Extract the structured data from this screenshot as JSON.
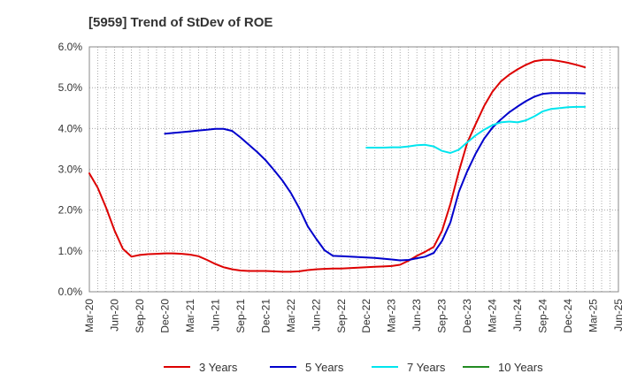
{
  "chart_data": {
    "type": "line",
    "title": "[5959]  Trend of StDev of ROE",
    "xlabel": "",
    "ylabel": "",
    "x_ticks": [
      "Mar-20",
      "Jun-20",
      "Sep-20",
      "Dec-20",
      "Mar-21",
      "Jun-21",
      "Sep-21",
      "Dec-21",
      "Mar-22",
      "Jun-22",
      "Sep-22",
      "Dec-22",
      "Mar-23",
      "Jun-23",
      "Sep-23",
      "Dec-23",
      "Mar-24",
      "Jun-24",
      "Sep-24",
      "Dec-24",
      "Mar-25",
      "Jun-25"
    ],
    "y_ticks": [
      "0.0%",
      "1.0%",
      "2.0%",
      "3.0%",
      "4.0%",
      "5.0%",
      "6.0%"
    ],
    "ylim": [
      0,
      6
    ],
    "grid": true,
    "legend_position": "bottom",
    "series": [
      {
        "name": "3 Years",
        "color": "#dd0000",
        "points": [
          [
            0,
            2.9
          ],
          [
            0.33,
            2.55
          ],
          [
            0.67,
            2.05
          ],
          [
            1,
            1.5
          ],
          [
            1.33,
            1.05
          ],
          [
            1.67,
            0.86
          ],
          [
            2,
            0.9
          ],
          [
            2.33,
            0.92
          ],
          [
            2.67,
            0.93
          ],
          [
            3,
            0.94
          ],
          [
            3.33,
            0.94
          ],
          [
            3.67,
            0.93
          ],
          [
            4,
            0.91
          ],
          [
            4.33,
            0.87
          ],
          [
            4.67,
            0.78
          ],
          [
            5,
            0.68
          ],
          [
            5.33,
            0.6
          ],
          [
            5.67,
            0.55
          ],
          [
            6,
            0.52
          ],
          [
            6.33,
            0.51
          ],
          [
            6.67,
            0.51
          ],
          [
            7,
            0.51
          ],
          [
            7.33,
            0.5
          ],
          [
            7.67,
            0.49
          ],
          [
            8,
            0.49
          ],
          [
            8.33,
            0.5
          ],
          [
            8.67,
            0.53
          ],
          [
            9,
            0.55
          ],
          [
            9.33,
            0.56
          ],
          [
            9.67,
            0.57
          ],
          [
            10,
            0.57
          ],
          [
            10.33,
            0.58
          ],
          [
            10.67,
            0.59
          ],
          [
            11,
            0.6
          ],
          [
            11.33,
            0.61
          ],
          [
            11.67,
            0.62
          ],
          [
            12,
            0.63
          ],
          [
            12.33,
            0.66
          ],
          [
            12.67,
            0.76
          ],
          [
            13,
            0.88
          ],
          [
            13.33,
            0.98
          ],
          [
            13.67,
            1.1
          ],
          [
            14,
            1.5
          ],
          [
            14.33,
            2.15
          ],
          [
            14.67,
            2.95
          ],
          [
            15,
            3.65
          ],
          [
            15.33,
            4.1
          ],
          [
            15.67,
            4.55
          ],
          [
            16,
            4.9
          ],
          [
            16.33,
            5.15
          ],
          [
            16.67,
            5.32
          ],
          [
            17,
            5.45
          ],
          [
            17.33,
            5.56
          ],
          [
            17.67,
            5.65
          ],
          [
            18,
            5.68
          ],
          [
            18.33,
            5.68
          ],
          [
            18.67,
            5.65
          ],
          [
            19,
            5.61
          ],
          [
            19.33,
            5.56
          ],
          [
            19.67,
            5.5
          ]
        ]
      },
      {
        "name": "5 Years",
        "color": "#0000cc",
        "points": [
          [
            3,
            3.87
          ],
          [
            3.33,
            3.89
          ],
          [
            3.67,
            3.91
          ],
          [
            4,
            3.93
          ],
          [
            4.33,
            3.95
          ],
          [
            4.67,
            3.97
          ],
          [
            5,
            3.99
          ],
          [
            5.33,
            3.99
          ],
          [
            5.67,
            3.94
          ],
          [
            6,
            3.78
          ],
          [
            6.33,
            3.6
          ],
          [
            6.67,
            3.42
          ],
          [
            7,
            3.22
          ],
          [
            7.33,
            2.98
          ],
          [
            7.67,
            2.72
          ],
          [
            8,
            2.42
          ],
          [
            8.33,
            2.05
          ],
          [
            8.67,
            1.6
          ],
          [
            9,
            1.3
          ],
          [
            9.33,
            1.02
          ],
          [
            9.67,
            0.88
          ],
          [
            10,
            0.87
          ],
          [
            10.33,
            0.86
          ],
          [
            10.67,
            0.85
          ],
          [
            11,
            0.84
          ],
          [
            11.33,
            0.83
          ],
          [
            11.67,
            0.81
          ],
          [
            12,
            0.79
          ],
          [
            12.33,
            0.77
          ],
          [
            12.67,
            0.78
          ],
          [
            13,
            0.82
          ],
          [
            13.33,
            0.86
          ],
          [
            13.67,
            0.95
          ],
          [
            14,
            1.25
          ],
          [
            14.33,
            1.7
          ],
          [
            14.67,
            2.45
          ],
          [
            15,
            2.95
          ],
          [
            15.33,
            3.38
          ],
          [
            15.67,
            3.75
          ],
          [
            16,
            4.02
          ],
          [
            16.33,
            4.22
          ],
          [
            16.67,
            4.4
          ],
          [
            17,
            4.54
          ],
          [
            17.33,
            4.67
          ],
          [
            17.67,
            4.78
          ],
          [
            18,
            4.85
          ],
          [
            18.33,
            4.87
          ],
          [
            18.67,
            4.87
          ],
          [
            19,
            4.87
          ],
          [
            19.33,
            4.87
          ],
          [
            19.67,
            4.86
          ]
        ]
      },
      {
        "name": "7 Years",
        "color": "#00e5ee",
        "points": [
          [
            11,
            3.53
          ],
          [
            11.33,
            3.53
          ],
          [
            11.67,
            3.53
          ],
          [
            12,
            3.54
          ],
          [
            12.33,
            3.54
          ],
          [
            12.67,
            3.56
          ],
          [
            13,
            3.59
          ],
          [
            13.33,
            3.6
          ],
          [
            13.67,
            3.56
          ],
          [
            14,
            3.45
          ],
          [
            14.33,
            3.4
          ],
          [
            14.67,
            3.48
          ],
          [
            15,
            3.66
          ],
          [
            15.33,
            3.83
          ],
          [
            15.67,
            3.97
          ],
          [
            16,
            4.08
          ],
          [
            16.33,
            4.15
          ],
          [
            16.67,
            4.17
          ],
          [
            17,
            4.15
          ],
          [
            17.33,
            4.2
          ],
          [
            17.67,
            4.3
          ],
          [
            18,
            4.42
          ],
          [
            18.33,
            4.48
          ],
          [
            18.67,
            4.5
          ],
          [
            19,
            4.52
          ],
          [
            19.33,
            4.53
          ],
          [
            19.67,
            4.53
          ]
        ]
      },
      {
        "name": "10 Years",
        "color": "#228b22",
        "points": []
      }
    ]
  }
}
